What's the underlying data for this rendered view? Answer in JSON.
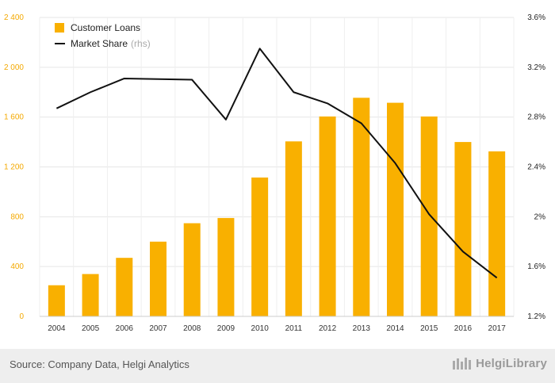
{
  "chart_data": {
    "type": "bar",
    "categories": [
      "2004",
      "2005",
      "2006",
      "2007",
      "2008",
      "2009",
      "2010",
      "2011",
      "2012",
      "2013",
      "2014",
      "2015",
      "2016",
      "2017"
    ],
    "series": [
      {
        "name": "Customer Loans",
        "type": "bar",
        "axis": "left",
        "color": "#f9b000",
        "values": [
          250,
          340,
          470,
          600,
          748,
          790,
          1115,
          1405,
          1605,
          1755,
          1715,
          1605,
          1400,
          1325
        ]
      },
      {
        "name": "Market Share",
        "name_suffix": "(rhs)",
        "type": "line",
        "axis": "right",
        "color": "#111111",
        "values": [
          2.87,
          3.0,
          3.11,
          3.105,
          3.1,
          2.78,
          3.35,
          3.0,
          2.91,
          2.75,
          2.43,
          2.02,
          1.72,
          1.51
        ]
      }
    ],
    "y_left": {
      "range": [
        0,
        2400
      ],
      "ticks": [
        0,
        400,
        800,
        1200,
        1600,
        2000,
        2400
      ],
      "tick_labels": [
        "0",
        "400",
        "800",
        "1 200",
        "1 600",
        "2 000",
        "2 400"
      ]
    },
    "y_right": {
      "range": [
        1.2,
        3.6
      ],
      "ticks": [
        1.2,
        1.6,
        2.0,
        2.4,
        2.8,
        3.2,
        3.6
      ],
      "tick_labels": [
        "1.2%",
        "1.6%",
        "2%",
        "2.4%",
        "2.8%",
        "3.2%",
        "3.6%"
      ]
    },
    "grid": true,
    "legend": "top-left"
  },
  "footer": {
    "source": "Source: Company Data, Helgi Analytics",
    "logo_text": "HelgiLibrary"
  }
}
